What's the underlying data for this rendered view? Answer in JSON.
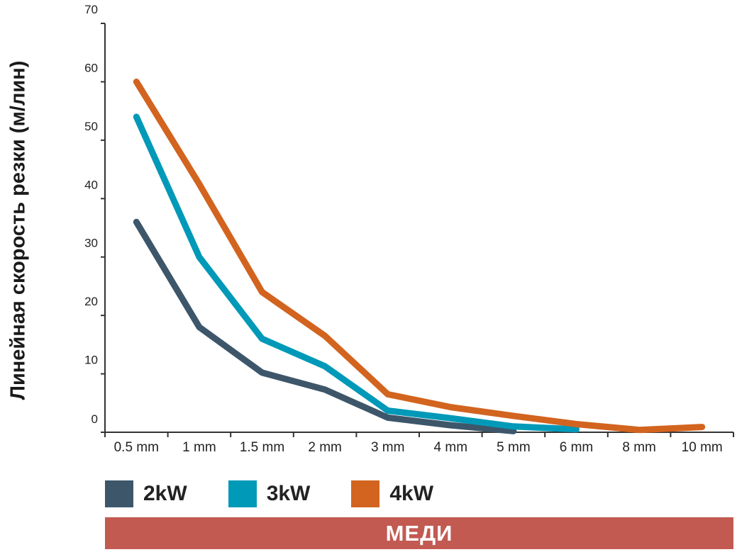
{
  "chart_data": {
    "type": "line",
    "title": "",
    "ylabel": "Линейная скорость резки (м/лин)",
    "xlabel": "",
    "categories": [
      "0.5 mm",
      "1 mm",
      "1.5 mm",
      "2 mm",
      "3 mm",
      "4 mm",
      "5 mm",
      "6 mm",
      "8 mm",
      "10 mm"
    ],
    "ylim": [
      0,
      70
    ],
    "yticks": [
      "0",
      "10",
      "20",
      "30",
      "40",
      "50",
      "60",
      "70"
    ],
    "grid": false,
    "legend_position": "bottom-left",
    "series": [
      {
        "name": "2kW",
        "color": "#3d566a",
        "values": [
          36,
          18,
          10.2,
          7.3,
          2.5,
          1.2,
          0.2,
          null,
          null,
          null
        ]
      },
      {
        "name": "3kW",
        "color": "#0099b8",
        "values": [
          54,
          30,
          16,
          11.3,
          3.7,
          2.4,
          1.0,
          0.5,
          null,
          null
        ]
      },
      {
        "name": "4kW",
        "color": "#d2641f",
        "values": [
          60,
          42.5,
          24,
          16.5,
          6.5,
          4.3,
          2.8,
          1.4,
          0.4,
          0.9
        ]
      }
    ]
  },
  "banner": {
    "text": "МЕДИ",
    "color": "#c25a52"
  }
}
